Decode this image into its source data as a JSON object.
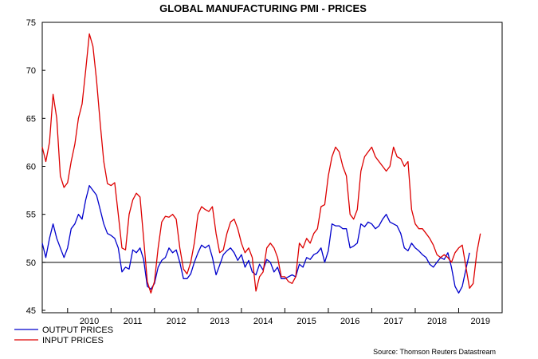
{
  "chart_data": {
    "type": "line",
    "title": "GLOBAL MANUFACTURING PMI - PRICES",
    "xlabel": "",
    "ylabel": "",
    "ylim": [
      45,
      75
    ],
    "yticks": [
      45,
      50,
      55,
      60,
      65,
      70,
      75
    ],
    "x_start": "2009-06",
    "x_end": "2020-01",
    "year_labels": [
      "2010",
      "2011",
      "2012",
      "2013",
      "2014",
      "2015",
      "2016",
      "2017",
      "2018",
      "2019"
    ],
    "reference_line": 50,
    "grid": false,
    "legend_position": "bottom-left",
    "source": "Source: Thomson Reuters Datastream",
    "series": [
      {
        "name": "OUTPUT PRICES",
        "color": "#0000cc",
        "points": [
          [
            "2009-06",
            52.0
          ],
          [
            "2009-07",
            50.5
          ],
          [
            "2009-08",
            52.5
          ],
          [
            "2009-09",
            54.0
          ],
          [
            "2009-10",
            52.5
          ],
          [
            "2009-11",
            51.5
          ],
          [
            "2009-12",
            50.5
          ],
          [
            "2010-01",
            51.5
          ],
          [
            "2010-02",
            53.5
          ],
          [
            "2010-03",
            54.0
          ],
          [
            "2010-04",
            55.0
          ],
          [
            "2010-05",
            54.5
          ],
          [
            "2010-06",
            56.5
          ],
          [
            "2010-07",
            58.0
          ],
          [
            "2010-08",
            57.5
          ],
          [
            "2010-09",
            57.0
          ],
          [
            "2010-10",
            55.5
          ],
          [
            "2010-11",
            54.0
          ],
          [
            "2010-12",
            53.0
          ],
          [
            "2011-01",
            52.8
          ],
          [
            "2011-02",
            52.5
          ],
          [
            "2011-03",
            51.5
          ],
          [
            "2011-04",
            49.0
          ],
          [
            "2011-05",
            49.5
          ],
          [
            "2011-06",
            49.3
          ],
          [
            "2011-07",
            51.3
          ],
          [
            "2011-08",
            51.0
          ],
          [
            "2011-09",
            51.5
          ],
          [
            "2011-10",
            50.3
          ],
          [
            "2011-11",
            47.5
          ],
          [
            "2011-12",
            47.2
          ],
          [
            "2012-01",
            47.8
          ],
          [
            "2012-02",
            49.5
          ],
          [
            "2012-03",
            50.2
          ],
          [
            "2012-04",
            50.5
          ],
          [
            "2012-05",
            51.5
          ],
          [
            "2012-06",
            51.0
          ],
          [
            "2012-07",
            51.3
          ],
          [
            "2012-08",
            50.0
          ],
          [
            "2012-09",
            48.3
          ],
          [
            "2012-10",
            48.3
          ],
          [
            "2012-11",
            48.8
          ],
          [
            "2012-12",
            50.0
          ],
          [
            "2013-01",
            51.0
          ],
          [
            "2013-02",
            51.8
          ],
          [
            "2013-03",
            51.5
          ],
          [
            "2013-04",
            51.8
          ],
          [
            "2013-05",
            50.5
          ],
          [
            "2013-06",
            48.7
          ],
          [
            "2013-07",
            49.7
          ],
          [
            "2013-08",
            50.8
          ],
          [
            "2013-09",
            51.2
          ],
          [
            "2013-10",
            51.5
          ],
          [
            "2013-11",
            51.0
          ],
          [
            "2013-12",
            50.2
          ],
          [
            "2014-01",
            50.8
          ],
          [
            "2014-02",
            49.5
          ],
          [
            "2014-03",
            50.2
          ],
          [
            "2014-04",
            49.0
          ],
          [
            "2014-05",
            48.7
          ],
          [
            "2014-06",
            49.8
          ],
          [
            "2014-07",
            49.2
          ],
          [
            "2014-08",
            50.3
          ],
          [
            "2014-09",
            50.0
          ],
          [
            "2014-10",
            49.0
          ],
          [
            "2014-11",
            49.5
          ],
          [
            "2014-12",
            48.3
          ],
          [
            "2015-01",
            48.3
          ],
          [
            "2015-02",
            48.5
          ],
          [
            "2015-03",
            48.7
          ],
          [
            "2015-04",
            48.5
          ],
          [
            "2015-05",
            49.8
          ],
          [
            "2015-06",
            49.5
          ],
          [
            "2015-07",
            50.5
          ],
          [
            "2015-08",
            50.3
          ],
          [
            "2015-09",
            50.8
          ],
          [
            "2015-10",
            51.0
          ],
          [
            "2015-11",
            51.5
          ],
          [
            "2015-12",
            50.0
          ],
          [
            "2016-01",
            51.2
          ],
          [
            "2016-02",
            54.0
          ],
          [
            "2016-03",
            53.8
          ],
          [
            "2016-04",
            53.8
          ],
          [
            "2016-05",
            53.5
          ],
          [
            "2016-06",
            53.5
          ],
          [
            "2016-07",
            51.5
          ],
          [
            "2016-08",
            51.7
          ],
          [
            "2016-09",
            52.0
          ],
          [
            "2016-10",
            54.0
          ],
          [
            "2016-11",
            53.7
          ],
          [
            "2016-12",
            54.2
          ],
          [
            "2017-01",
            54.0
          ],
          [
            "2017-02",
            53.5
          ],
          [
            "2017-03",
            53.8
          ],
          [
            "2017-04",
            54.5
          ],
          [
            "2017-05",
            55.0
          ],
          [
            "2017-06",
            54.2
          ],
          [
            "2017-07",
            54.0
          ],
          [
            "2017-08",
            53.8
          ],
          [
            "2017-09",
            53.0
          ],
          [
            "2017-10",
            51.5
          ],
          [
            "2017-11",
            51.2
          ],
          [
            "2017-12",
            52.0
          ],
          [
            "2018-01",
            51.5
          ],
          [
            "2018-02",
            51.2
          ],
          [
            "2018-03",
            50.8
          ],
          [
            "2018-04",
            50.5
          ],
          [
            "2018-05",
            49.8
          ],
          [
            "2018-06",
            49.5
          ],
          [
            "2018-07",
            50.0
          ],
          [
            "2018-08",
            50.5
          ],
          [
            "2018-09",
            50.3
          ],
          [
            "2018-10",
            51.0
          ],
          [
            "2018-11",
            49.5
          ],
          [
            "2018-12",
            47.5
          ],
          [
            "2019-01",
            46.8
          ],
          [
            "2019-02",
            47.5
          ],
          [
            "2019-03",
            49.3
          ],
          [
            "2019-04",
            51.0
          ]
        ]
      },
      {
        "name": "INPUT PRICES",
        "color": "#dd0000",
        "points": [
          [
            "2009-06",
            62.0
          ],
          [
            "2009-07",
            60.5
          ],
          [
            "2009-08",
            62.5
          ],
          [
            "2009-09",
            67.5
          ],
          [
            "2009-10",
            65.0
          ],
          [
            "2009-11",
            59.0
          ],
          [
            "2009-12",
            57.8
          ],
          [
            "2010-01",
            58.3
          ],
          [
            "2010-02",
            60.5
          ],
          [
            "2010-03",
            62.3
          ],
          [
            "2010-04",
            65.0
          ],
          [
            "2010-05",
            66.5
          ],
          [
            "2010-06",
            70.0
          ],
          [
            "2010-07",
            73.8
          ],
          [
            "2010-08",
            72.5
          ],
          [
            "2010-09",
            69.0
          ],
          [
            "2010-10",
            64.5
          ],
          [
            "2010-11",
            60.5
          ],
          [
            "2010-12",
            58.2
          ],
          [
            "2011-01",
            58.0
          ],
          [
            "2011-02",
            58.3
          ],
          [
            "2011-03",
            55.0
          ],
          [
            "2011-04",
            51.5
          ],
          [
            "2011-05",
            51.3
          ],
          [
            "2011-06",
            55.0
          ],
          [
            "2011-07",
            56.5
          ],
          [
            "2011-08",
            57.2
          ],
          [
            "2011-09",
            56.8
          ],
          [
            "2011-10",
            52.5
          ],
          [
            "2011-11",
            48.0
          ],
          [
            "2011-12",
            46.8
          ],
          [
            "2012-01",
            48.0
          ],
          [
            "2012-02",
            51.5
          ],
          [
            "2012-03",
            54.2
          ],
          [
            "2012-04",
            54.8
          ],
          [
            "2012-05",
            54.7
          ],
          [
            "2012-06",
            55.0
          ],
          [
            "2012-07",
            54.5
          ],
          [
            "2012-08",
            51.5
          ],
          [
            "2012-09",
            49.3
          ],
          [
            "2012-10",
            48.8
          ],
          [
            "2012-11",
            50.0
          ],
          [
            "2012-12",
            52.0
          ],
          [
            "2013-01",
            55.0
          ],
          [
            "2013-02",
            55.8
          ],
          [
            "2013-03",
            55.5
          ],
          [
            "2013-04",
            55.3
          ],
          [
            "2013-05",
            55.8
          ],
          [
            "2013-06",
            53.0
          ],
          [
            "2013-07",
            51.0
          ],
          [
            "2013-08",
            51.3
          ],
          [
            "2013-09",
            53.0
          ],
          [
            "2013-10",
            54.2
          ],
          [
            "2013-11",
            54.5
          ],
          [
            "2013-12",
            53.5
          ],
          [
            "2014-01",
            52.0
          ],
          [
            "2014-02",
            51.0
          ],
          [
            "2014-03",
            51.5
          ],
          [
            "2014-04",
            50.5
          ],
          [
            "2014-05",
            47.0
          ],
          [
            "2014-06",
            48.5
          ],
          [
            "2014-07",
            49.0
          ],
          [
            "2014-08",
            51.5
          ],
          [
            "2014-09",
            52.0
          ],
          [
            "2014-10",
            51.5
          ],
          [
            "2014-11",
            50.5
          ],
          [
            "2014-12",
            48.5
          ],
          [
            "2015-01",
            48.5
          ],
          [
            "2015-02",
            48.0
          ],
          [
            "2015-03",
            47.8
          ],
          [
            "2015-04",
            48.5
          ],
          [
            "2015-05",
            52.0
          ],
          [
            "2015-06",
            51.5
          ],
          [
            "2015-07",
            52.5
          ],
          [
            "2015-08",
            52.0
          ],
          [
            "2015-09",
            53.0
          ],
          [
            "2015-10",
            53.5
          ],
          [
            "2015-11",
            55.8
          ],
          [
            "2015-12",
            56.0
          ],
          [
            "2016-01",
            59.0
          ],
          [
            "2016-02",
            61.0
          ],
          [
            "2016-03",
            62.0
          ],
          [
            "2016-04",
            61.5
          ],
          [
            "2016-05",
            60.0
          ],
          [
            "2016-06",
            59.0
          ],
          [
            "2016-07",
            55.0
          ],
          [
            "2016-08",
            54.5
          ],
          [
            "2016-09",
            55.5
          ],
          [
            "2016-10",
            59.5
          ],
          [
            "2016-11",
            61.0
          ],
          [
            "2016-12",
            61.5
          ],
          [
            "2017-01",
            62.0
          ],
          [
            "2017-02",
            61.0
          ],
          [
            "2017-03",
            60.5
          ],
          [
            "2017-04",
            60.0
          ],
          [
            "2017-05",
            59.5
          ],
          [
            "2017-06",
            60.0
          ],
          [
            "2017-07",
            62.0
          ],
          [
            "2017-08",
            61.0
          ],
          [
            "2017-09",
            60.8
          ],
          [
            "2017-10",
            60.0
          ],
          [
            "2017-11",
            60.5
          ],
          [
            "2017-12",
            55.5
          ],
          [
            "2018-01",
            54.0
          ],
          [
            "2018-02",
            53.5
          ],
          [
            "2018-03",
            53.5
          ],
          [
            "2018-04",
            53.0
          ],
          [
            "2018-05",
            52.5
          ],
          [
            "2018-06",
            51.8
          ],
          [
            "2018-07",
            50.8
          ],
          [
            "2018-08",
            50.5
          ],
          [
            "2018-09",
            50.8
          ],
          [
            "2018-10",
            50.5
          ],
          [
            "2018-11",
            50.0
          ],
          [
            "2018-12",
            51.0
          ],
          [
            "2019-01",
            51.5
          ],
          [
            "2019-02",
            51.8
          ],
          [
            "2019-03",
            49.5
          ],
          [
            "2019-04",
            47.3
          ],
          [
            "2019-05",
            47.8
          ],
          [
            "2019-06",
            51.0
          ],
          [
            "2019-07",
            53.0
          ]
        ]
      }
    ]
  }
}
